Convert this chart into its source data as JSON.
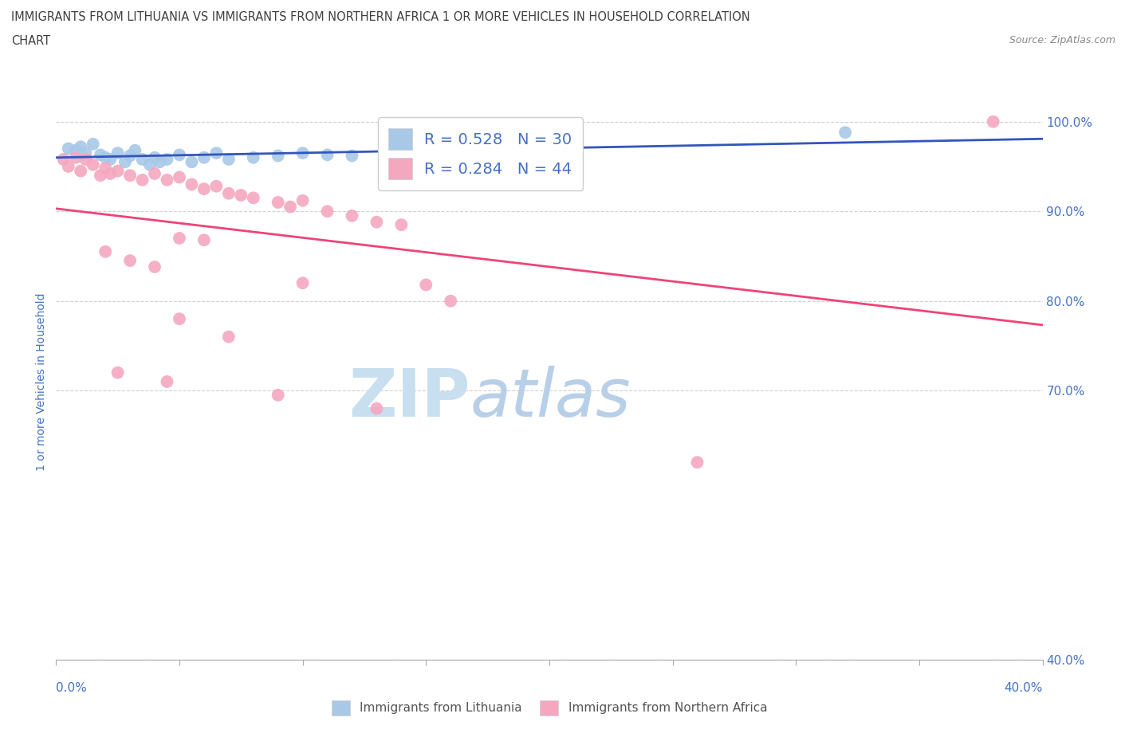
{
  "title_line1": "IMMIGRANTS FROM LITHUANIA VS IMMIGRANTS FROM NORTHERN AFRICA 1 OR MORE VEHICLES IN HOUSEHOLD CORRELATION",
  "title_line2": "CHART",
  "source": "Source: ZipAtlas.com",
  "ylabel_label": "1 or more Vehicles in Household",
  "r_lithuania": 0.528,
  "n_lithuania": 30,
  "r_n_africa": 0.284,
  "n_n_africa": 44,
  "legend_label_1": "Immigrants from Lithuania",
  "legend_label_2": "Immigrants from Northern Africa",
  "color_lithuania": "#a8c8e8",
  "color_n_africa": "#f4a8c0",
  "color_trend_lithuania": "#3355bb",
  "color_trend_n_africa": "#ee4477",
  "color_axis_labels": "#4472c4",
  "color_title": "#404040",
  "watermark_zip": "ZIP",
  "watermark_atlas": "atlas",
  "watermark_color_zip": "#c8dff0",
  "watermark_color_atlas": "#b8cfe8",
  "background_color": "#ffffff",
  "grid_color": "#cccccc",
  "xmin": 0.0,
  "xmax": 0.4,
  "ymin": 0.4,
  "ymax": 1.02,
  "ytick_vals": [
    0.4,
    0.7,
    0.8,
    0.9,
    1.0
  ],
  "ytick_labels": [
    "40.0%",
    "70.0%",
    "80.0%",
    "90.0%",
    "100.0%"
  ],
  "lithuania_x": [
    0.005,
    0.008,
    0.01,
    0.012,
    0.015,
    0.018,
    0.02,
    0.022,
    0.025,
    0.028,
    0.03,
    0.032,
    0.035,
    0.038,
    0.04,
    0.042,
    0.045,
    0.05,
    0.055,
    0.06,
    0.065,
    0.07,
    0.08,
    0.09,
    0.1,
    0.11,
    0.12,
    0.14,
    0.16,
    0.32
  ],
  "lithuania_y": [
    0.97,
    0.968,
    0.972,
    0.965,
    0.975,
    0.963,
    0.96,
    0.958,
    0.965,
    0.955,
    0.962,
    0.968,
    0.958,
    0.952,
    0.96,
    0.955,
    0.958,
    0.963,
    0.955,
    0.96,
    0.965,
    0.958,
    0.96,
    0.962,
    0.965,
    0.963,
    0.962,
    0.965,
    0.965,
    0.988
  ],
  "n_africa_x": [
    0.003,
    0.005,
    0.008,
    0.01,
    0.012,
    0.015,
    0.018,
    0.02,
    0.022,
    0.025,
    0.03,
    0.035,
    0.04,
    0.045,
    0.05,
    0.055,
    0.06,
    0.065,
    0.07,
    0.075,
    0.08,
    0.09,
    0.095,
    0.1,
    0.11,
    0.12,
    0.13,
    0.14,
    0.05,
    0.06,
    0.02,
    0.03,
    0.04,
    0.1,
    0.15,
    0.16,
    0.05,
    0.07,
    0.025,
    0.045,
    0.09,
    0.13,
    0.26,
    0.38
  ],
  "n_africa_y": [
    0.958,
    0.95,
    0.96,
    0.945,
    0.958,
    0.952,
    0.94,
    0.948,
    0.942,
    0.945,
    0.94,
    0.935,
    0.942,
    0.935,
    0.938,
    0.93,
    0.925,
    0.928,
    0.92,
    0.918,
    0.915,
    0.91,
    0.905,
    0.912,
    0.9,
    0.895,
    0.888,
    0.885,
    0.87,
    0.868,
    0.855,
    0.845,
    0.838,
    0.82,
    0.818,
    0.8,
    0.78,
    0.76,
    0.72,
    0.71,
    0.695,
    0.68,
    0.62,
    1.0
  ]
}
